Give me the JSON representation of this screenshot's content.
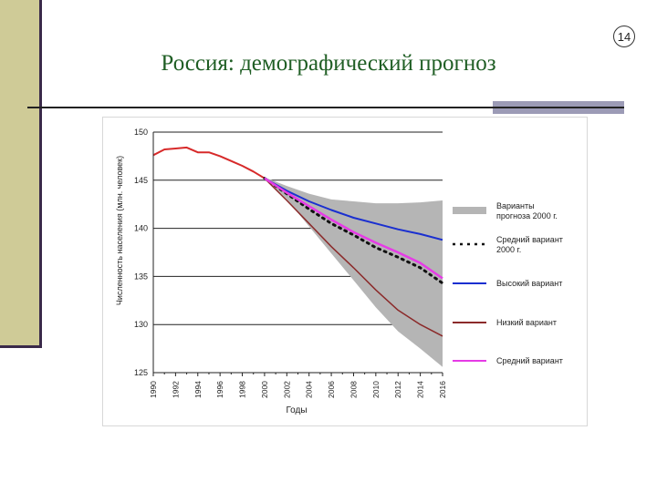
{
  "slide": {
    "title": "Россия: демографический прогноз",
    "page_number": "14",
    "colors": {
      "title": "#1f5e24",
      "sidebar": "#cfcb97",
      "rule_block": "#9c9bb6"
    }
  },
  "chart_data": {
    "type": "line",
    "xlabel": "Годы",
    "ylabel": "Численность населения (млн. человек)",
    "xlim": [
      1990,
      2016
    ],
    "ylim": [
      125,
      150
    ],
    "x_ticks": [
      1990,
      1992,
      1994,
      1996,
      1998,
      2000,
      2002,
      2004,
      2006,
      2008,
      2010,
      2012,
      2014,
      2016
    ],
    "y_ticks": [
      125,
      130,
      135,
      140,
      145,
      150
    ],
    "grid": "horizontal",
    "legend_position": "right",
    "band": {
      "name": "Варианты прогноза 2000 г.",
      "color": "#b5b5b5",
      "x": [
        2000,
        2002,
        2004,
        2006,
        2008,
        2010,
        2012,
        2014,
        2016
      ],
      "upper": [
        145.3,
        144.4,
        143.6,
        143.0,
        142.8,
        142.6,
        142.6,
        142.7,
        142.9
      ],
      "lower": [
        145.3,
        143.0,
        140.2,
        137.4,
        134.6,
        131.8,
        129.3,
        127.5,
        125.6
      ]
    },
    "series": [
      {
        "name": "",
        "color": "#d72a2a",
        "style": "solid",
        "width": 2,
        "x": [
          1990,
          1991,
          1992,
          1993,
          1994,
          1995,
          1996,
          1997,
          1998,
          1999,
          2000
        ],
        "y": [
          147.6,
          148.2,
          148.3,
          148.4,
          147.9,
          147.9,
          147.5,
          147.0,
          146.5,
          145.9,
          145.2
        ]
      },
      {
        "name": "Средний вариант 2000 г.",
        "color": "#111111",
        "style": "dotted",
        "width": 3,
        "x": [
          2000,
          2002,
          2004,
          2006,
          2008,
          2010,
          2012,
          2014,
          2016
        ],
        "y": [
          145.2,
          143.6,
          142.0,
          140.5,
          139.3,
          138.0,
          137.0,
          135.9,
          134.3
        ]
      },
      {
        "name": "Высокий вариант",
        "color": "#1a2fd0",
        "style": "solid",
        "width": 2,
        "x": [
          2000,
          2002,
          2004,
          2006,
          2008,
          2010,
          2012,
          2014,
          2016
        ],
        "y": [
          145.2,
          143.9,
          142.8,
          141.9,
          141.1,
          140.5,
          139.9,
          139.4,
          138.8
        ]
      },
      {
        "name": "Низкий вариант",
        "color": "#8b2a2a",
        "style": "solid",
        "width": 1.5,
        "x": [
          2000,
          2002,
          2004,
          2006,
          2008,
          2010,
          2012,
          2014,
          2016
        ],
        "y": [
          145.2,
          142.9,
          140.5,
          138.1,
          135.9,
          133.6,
          131.5,
          130.0,
          128.8
        ]
      },
      {
        "name": "Средний вариант",
        "color": "#e63be6",
        "style": "solid",
        "width": 2.5,
        "x": [
          2000,
          2002,
          2004,
          2006,
          2008,
          2010,
          2012,
          2014,
          2016
        ],
        "y": [
          145.2,
          143.7,
          142.3,
          140.9,
          139.6,
          138.5,
          137.5,
          136.4,
          134.8
        ]
      }
    ],
    "legend": [
      {
        "label_line1": "Варианты",
        "label_line2": "прогноза 2000 г.",
        "kind": "band",
        "color": "#b5b5b5"
      },
      {
        "label_line1": "Средний вариант",
        "label_line2": "2000 г.",
        "kind": "dotted",
        "color": "#111111"
      },
      {
        "label_line1": "Высокий вариант",
        "label_line2": "",
        "kind": "line",
        "color": "#1a2fd0"
      },
      {
        "label_line1": "Низкий вариант",
        "label_line2": "",
        "kind": "line",
        "color": "#8b2a2a"
      },
      {
        "label_line1": "Средний вариант",
        "label_line2": "",
        "kind": "line",
        "color": "#e63be6"
      }
    ]
  }
}
